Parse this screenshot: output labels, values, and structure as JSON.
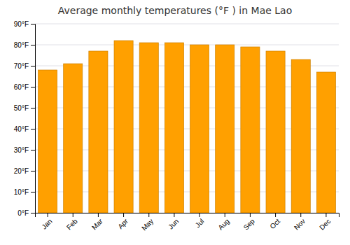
{
  "chart_data": {
    "type": "bar",
    "title": "Average monthly temperatures (°F ) in Mae Lao",
    "categories": [
      "Jan",
      "Feb",
      "Mar",
      "Apr",
      "May",
      "Jun",
      "Jul",
      "Aug",
      "Sep",
      "Oct",
      "Nov",
      "Dec"
    ],
    "values": [
      68,
      71,
      77,
      82,
      81,
      81,
      80,
      80,
      79,
      77,
      73,
      67
    ],
    "color": "#FFA000",
    "ylim": [
      0,
      90
    ],
    "yticks": [
      {
        "value": 0,
        "label": "0°F"
      },
      {
        "value": 10,
        "label": "10°F"
      },
      {
        "value": 20,
        "label": "20°F"
      },
      {
        "value": 30,
        "label": "30°F"
      },
      {
        "value": 40,
        "label": "40°F"
      },
      {
        "value": 50,
        "label": "50°F"
      },
      {
        "value": 60,
        "label": "60°F"
      },
      {
        "value": 70,
        "label": "70°F"
      },
      {
        "value": 80,
        "label": "80°F"
      },
      {
        "value": 90,
        "label": "90°F"
      }
    ],
    "grid": true
  }
}
